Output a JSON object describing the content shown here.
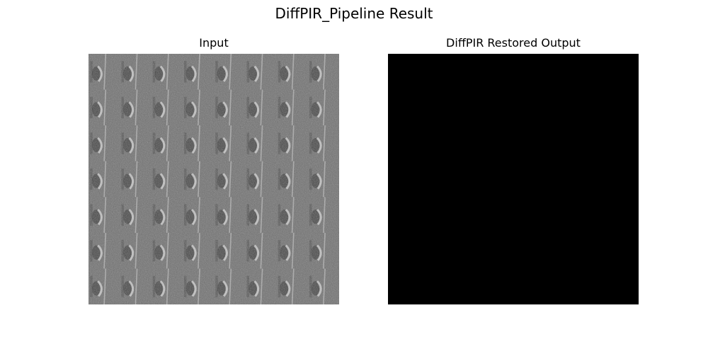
{
  "figure": {
    "title": "DiffPIR_Pipeline Result"
  },
  "panels": [
    {
      "title": "Input",
      "image": "noisy grayscale periodic texture with repeating curved bright marks on a gray background",
      "tile_grid": {
        "columns": 8,
        "rows": 7
      },
      "colors": {
        "base": "#6e6e6e",
        "bright": "#d8d8d8",
        "dark": "#2a2a2a"
      }
    },
    {
      "title": "DiffPIR Restored Output",
      "image": "solid black image",
      "colors": {
        "fill": "#000000"
      }
    }
  ]
}
